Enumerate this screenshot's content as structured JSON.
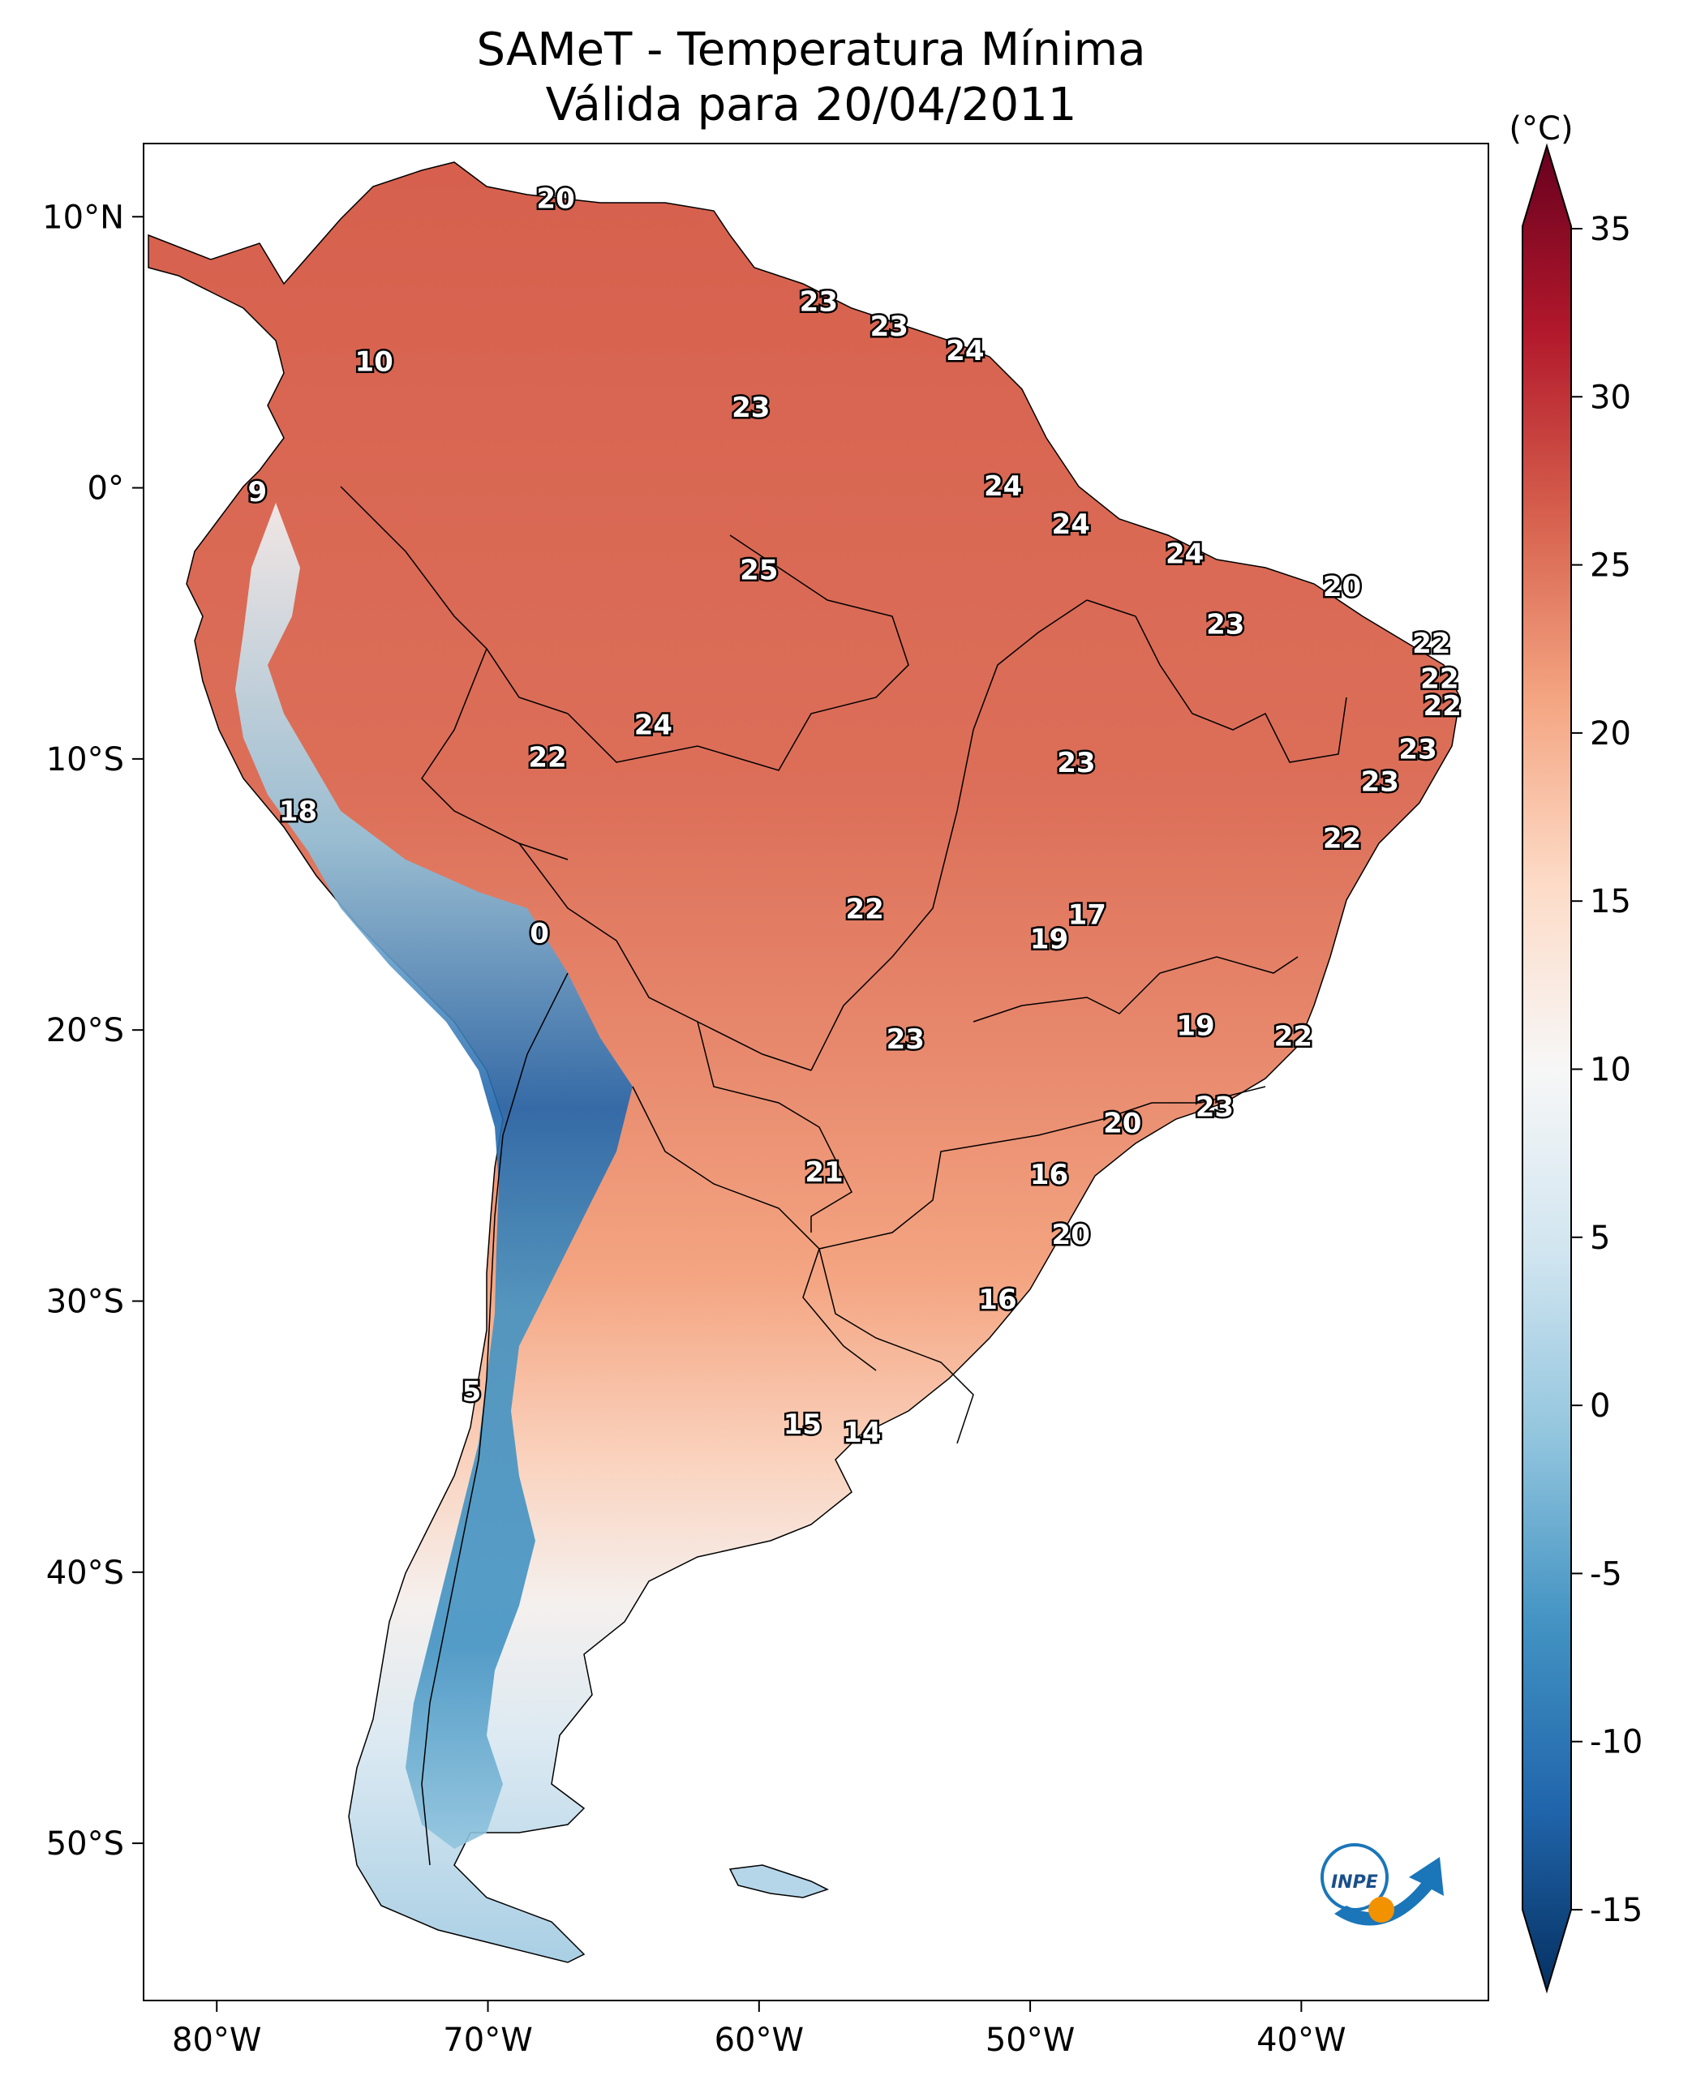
{
  "title": {
    "line1": "SAMeT - Temperatura Mínima",
    "line2": "Válida para 20/04/2011"
  },
  "axes": {
    "lon_ticks": [
      "80°W",
      "70°W",
      "60°W",
      "50°W",
      "40°W"
    ],
    "lat_ticks": [
      "10°N",
      "0°",
      "10°S",
      "20°S",
      "30°S",
      "40°S",
      "50°S"
    ]
  },
  "colorbar": {
    "unit": "(°C)",
    "ticks": [
      "35",
      "30",
      "25",
      "20",
      "15",
      "10",
      "5",
      "0",
      "-5",
      "-10",
      "-15"
    ],
    "colors": [
      "#67001f",
      "#b2182b",
      "#d6604d",
      "#f4a582",
      "#fddbc7",
      "#f7f7f7",
      "#d1e5f0",
      "#92c5de",
      "#4393c3",
      "#2166ac",
      "#053061"
    ]
  },
  "station_labels": [
    {
      "text": "20",
      "lon": -67.5,
      "lat": 10.6
    },
    {
      "text": "10",
      "lon": -74.2,
      "lat": 4.6
    },
    {
      "text": "9",
      "lon": -78.5,
      "lat": -0.2
    },
    {
      "text": "23",
      "lon": -57.8,
      "lat": 6.8
    },
    {
      "text": "23",
      "lon": -55.2,
      "lat": 5.9
    },
    {
      "text": "24",
      "lon": -52.4,
      "lat": 5.0
    },
    {
      "text": "23",
      "lon": -60.3,
      "lat": 2.9
    },
    {
      "text": "24",
      "lon": -51.0,
      "lat": 0.0
    },
    {
      "text": "25",
      "lon": -60.0,
      "lat": -3.1
    },
    {
      "text": "24",
      "lon": -48.5,
      "lat": -1.4
    },
    {
      "text": "24",
      "lon": -44.3,
      "lat": -2.5
    },
    {
      "text": "20",
      "lon": -38.5,
      "lat": -3.7
    },
    {
      "text": "23",
      "lon": -42.8,
      "lat": -5.1
    },
    {
      "text": "22",
      "lon": -35.2,
      "lat": -5.8
    },
    {
      "text": "22",
      "lon": -34.9,
      "lat": -7.1
    },
    {
      "text": "22",
      "lon": -34.8,
      "lat": -8.1
    },
    {
      "text": "23",
      "lon": -35.7,
      "lat": -9.7
    },
    {
      "text": "23",
      "lon": -37.1,
      "lat": -10.9
    },
    {
      "text": "24",
      "lon": -63.9,
      "lat": -8.8
    },
    {
      "text": "22",
      "lon": -67.8,
      "lat": -10.0
    },
    {
      "text": "23",
      "lon": -48.3,
      "lat": -10.2
    },
    {
      "text": "18",
      "lon": -77.0,
      "lat": -12.0
    },
    {
      "text": "22",
      "lon": -38.5,
      "lat": -13.0
    },
    {
      "text": "17",
      "lon": -47.9,
      "lat": -15.8
    },
    {
      "text": "19",
      "lon": -49.3,
      "lat": -16.7
    },
    {
      "text": "22",
      "lon": -56.1,
      "lat": -15.6
    },
    {
      "text": "0",
      "lon": -68.1,
      "lat": -16.5
    },
    {
      "text": "19",
      "lon": -43.9,
      "lat": -19.9
    },
    {
      "text": "22",
      "lon": -40.3,
      "lat": -20.3
    },
    {
      "text": "23",
      "lon": -54.6,
      "lat": -20.4
    },
    {
      "text": "23",
      "lon": -43.2,
      "lat": -22.9
    },
    {
      "text": "20",
      "lon": -46.6,
      "lat": -23.5
    },
    {
      "text": "21",
      "lon": -57.6,
      "lat": -25.3
    },
    {
      "text": "16",
      "lon": -49.3,
      "lat": -25.4
    },
    {
      "text": "20",
      "lon": -48.5,
      "lat": -27.6
    },
    {
      "text": "16",
      "lon": -51.2,
      "lat": -30.0
    },
    {
      "text": "5",
      "lon": -70.6,
      "lat": -33.4
    },
    {
      "text": "15",
      "lon": -58.4,
      "lat": -34.6
    },
    {
      "text": "14",
      "lon": -56.2,
      "lat": -34.9
    }
  ],
  "logo": {
    "text": "INPE"
  }
}
